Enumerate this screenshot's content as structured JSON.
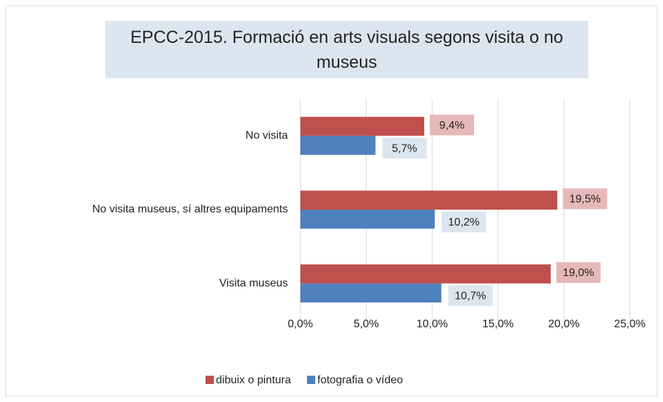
{
  "chart_data": {
    "type": "hbar",
    "title": "EPCC-2015. Formació en arts visuals segons visita o no museus",
    "categories": [
      "No visita",
      "No visita museus, sí altres equipaments",
      "Visita museus"
    ],
    "series": [
      {
        "name": "dibuix o pintura",
        "color": "#c0504d",
        "label_color": "#e6b9b8",
        "values": [
          9.4,
          19.5,
          19.0
        ],
        "value_labels": [
          "9,4%",
          "19,5%",
          "19,0%"
        ]
      },
      {
        "name": "fotografia o vídeo",
        "color": "#4f81bd",
        "label_color": "#dce6f1",
        "values": [
          5.7,
          10.2,
          10.7
        ],
        "value_labels": [
          "5,7%",
          "10,2%",
          "10,7%"
        ]
      }
    ],
    "xlim": [
      0,
      25
    ],
    "xticks": [
      {
        "value": 0,
        "label": "0,0%"
      },
      {
        "value": 5,
        "label": "5,0%"
      },
      {
        "value": 10,
        "label": "10,0%"
      },
      {
        "value": 15,
        "label": "15,0%"
      },
      {
        "value": 20,
        "label": "20,0%"
      },
      {
        "value": 25,
        "label": "25,0%"
      }
    ],
    "grid": true,
    "legend": "bottom"
  }
}
